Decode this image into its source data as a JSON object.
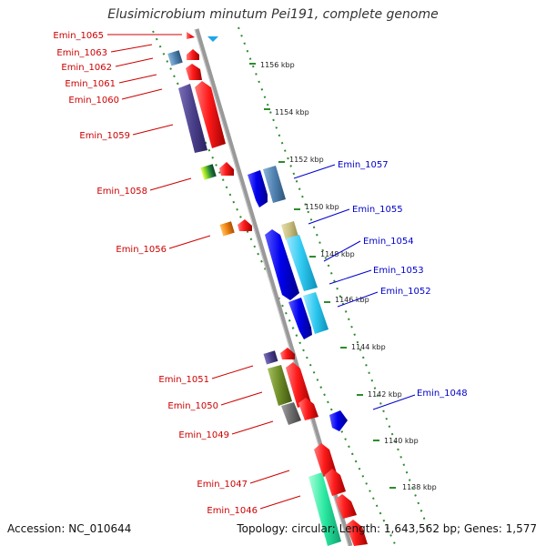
{
  "title": "Elusimicrobium minutum Pei191, complete genome",
  "footer": {
    "accession": "Accession: NC_010644",
    "stats": "Topology: circular; Length: 1,643,562 bp; Genes: 1,577"
  },
  "colors": {
    "backbone": "#999999",
    "tick": "#2e8b2e",
    "label_left": "#cc0000",
    "label_right": "#0000cc"
  },
  "scale_labels": [
    "1156 kbp",
    "1154 kbp",
    "1152 kbp",
    "1150 kbp",
    "1148 kbp",
    "1146 kbp",
    "1144 kbp",
    "1142 kbp",
    "1140 kbp",
    "1138 kbp"
  ],
  "genes_left": [
    "Emin_1065",
    "Emin_1063",
    "Emin_1062",
    "Emin_1061",
    "Emin_1060",
    "Emin_1059",
    "Emin_1058",
    "Emin_1056",
    "Emin_1051",
    "Emin_1050",
    "Emin_1049",
    "Emin_1047",
    "Emin_1046"
  ],
  "genes_right": [
    "Emin_1057",
    "Emin_1055",
    "Emin_1054",
    "Emin_1053",
    "Emin_1052",
    "Emin_1048"
  ]
}
